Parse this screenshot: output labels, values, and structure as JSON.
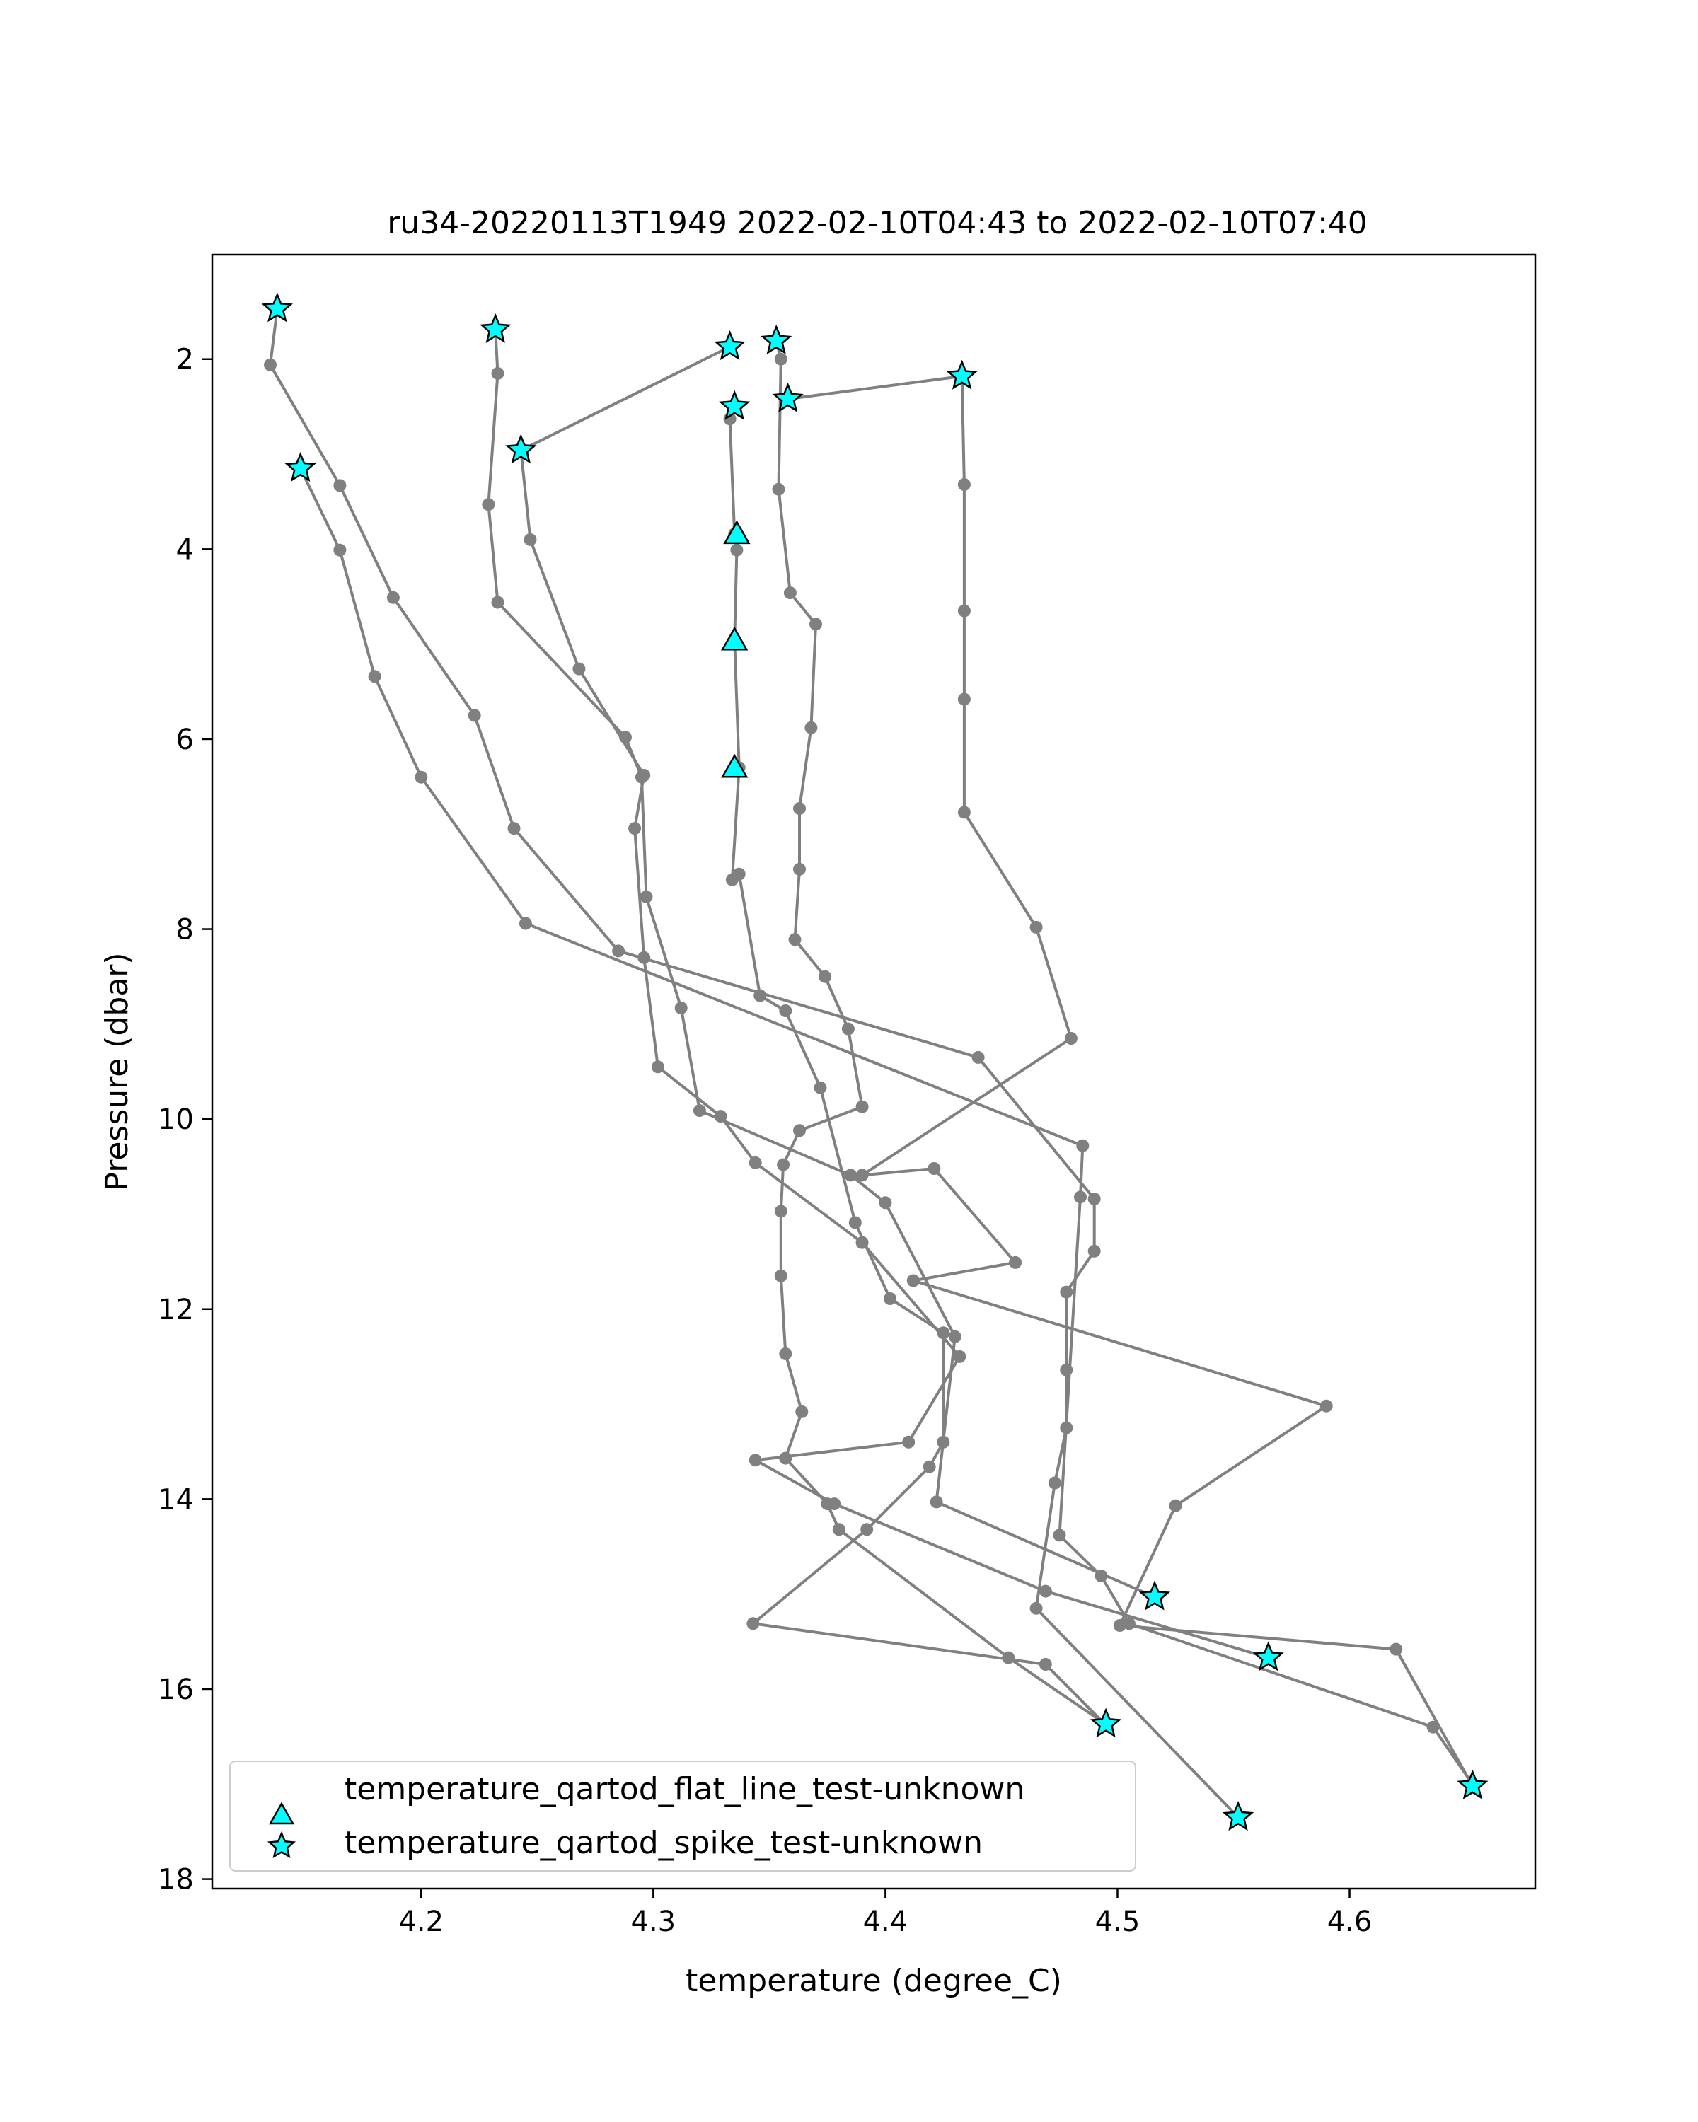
{
  "chart_data": {
    "type": "line",
    "title": "ru34-20220113T1949 2022-02-10T04:43 to 2022-02-10T07:40",
    "xlabel": "temperature (degree_C)",
    "ylabel": "Pressure (dbar)",
    "xlim": [
      4.11,
      4.68
    ],
    "ylim": [
      18.1,
      0.9
    ],
    "y_inverted": true,
    "xticks": [
      4.2,
      4.3,
      4.4,
      4.5,
      4.6
    ],
    "xtick_labels": [
      "4.2",
      "4.3",
      "4.4",
      "4.5",
      "4.6"
    ],
    "yticks": [
      2,
      4,
      6,
      8,
      10,
      12,
      14,
      16,
      18
    ],
    "ytick_labels": [
      "2",
      "4",
      "6",
      "8",
      "10",
      "12",
      "14",
      "16",
      "18"
    ],
    "grid": false,
    "legend_position": "lower-left",
    "colors": {
      "line": "#808080",
      "marker_fill": "#00ffff",
      "marker_edge": "#000000"
    },
    "series": [
      {
        "points": [
          [
            4.138,
            1.47
          ],
          [
            4.135,
            2.06
          ],
          [
            4.165,
            3.33
          ],
          [
            4.188,
            4.51
          ],
          [
            4.223,
            5.75
          ],
          [
            4.24,
            6.94
          ],
          [
            4.285,
            8.23
          ],
          [
            4.44,
            9.35
          ],
          [
            4.49,
            10.84
          ],
          [
            4.49,
            11.39
          ],
          [
            4.478,
            11.82
          ],
          [
            4.478,
            12.64
          ],
          [
            4.478,
            13.25
          ],
          [
            4.473,
            13.83
          ],
          [
            4.465,
            15.15
          ],
          [
            4.552,
            17.35
          ]
        ]
      },
      {
        "points": [
          [
            4.232,
            1.69
          ],
          [
            4.233,
            2.15
          ],
          [
            4.229,
            3.53
          ],
          [
            4.233,
            4.56
          ],
          [
            4.288,
            5.98
          ],
          [
            4.295,
            6.4
          ],
          [
            4.297,
            7.66
          ],
          [
            4.312,
            8.83
          ],
          [
            4.32,
            9.91
          ],
          [
            4.385,
            10.59
          ],
          [
            4.4,
            10.88
          ],
          [
            4.43,
            12.29
          ],
          [
            4.422,
            14.03
          ],
          [
            4.516,
            15.03
          ]
        ]
      },
      {
        "points": [
          [
            4.333,
            1.87
          ],
          [
            4.243,
            2.96
          ],
          [
            4.247,
            3.9
          ],
          [
            4.268,
            5.26
          ],
          [
            4.296,
            6.38
          ],
          [
            4.292,
            6.94
          ],
          [
            4.296,
            8.3
          ],
          [
            4.302,
            9.45
          ],
          [
            4.329,
            9.97
          ],
          [
            4.344,
            10.46
          ],
          [
            4.39,
            11.3
          ],
          [
            4.432,
            12.5
          ],
          [
            4.41,
            13.4
          ],
          [
            4.344,
            13.59
          ],
          [
            4.378,
            14.05
          ],
          [
            4.469,
            14.97
          ],
          [
            4.565,
            15.67
          ]
        ]
      },
      {
        "points": [
          [
            4.353,
            1.81
          ],
          [
            4.355,
            2.0
          ],
          [
            4.354,
            3.37
          ],
          [
            4.359,
            4.46
          ],
          [
            4.37,
            4.79
          ],
          [
            4.368,
            5.88
          ],
          [
            4.363,
            6.73
          ],
          [
            4.363,
            7.37
          ],
          [
            4.361,
            8.11
          ],
          [
            4.374,
            8.5
          ],
          [
            4.384,
            9.05
          ],
          [
            4.39,
            9.87
          ],
          [
            4.363,
            10.12
          ],
          [
            4.356,
            10.48
          ],
          [
            4.355,
            10.97
          ],
          [
            4.355,
            11.65
          ],
          [
            4.357,
            12.47
          ],
          [
            4.364,
            13.08
          ],
          [
            4.357,
            13.57
          ],
          [
            4.375,
            14.05
          ],
          [
            4.38,
            14.32
          ],
          [
            4.453,
            15.67
          ],
          [
            4.495,
            16.37
          ]
        ]
      },
      {
        "points": [
          [
            4.335,
            2.5
          ],
          [
            4.333,
            2.63
          ],
          [
            4.335,
            3.84
          ],
          [
            4.336,
            4.01
          ],
          [
            4.335,
            4.96
          ],
          [
            4.337,
            6.3
          ],
          [
            4.334,
            7.48
          ],
          [
            4.337,
            7.42
          ],
          [
            4.346,
            8.7
          ],
          [
            4.357,
            8.86
          ],
          [
            4.372,
            9.67
          ],
          [
            4.387,
            11.09
          ],
          [
            4.402,
            11.89
          ],
          [
            4.425,
            12.25
          ],
          [
            4.425,
            13.4
          ],
          [
            4.419,
            13.66
          ],
          [
            4.392,
            14.32
          ],
          [
            4.343,
            15.31
          ],
          [
            4.469,
            15.74
          ],
          [
            4.495,
            16.38
          ]
        ]
      },
      {
        "points": [
          [
            4.358,
            2.42
          ],
          [
            4.433,
            2.18
          ],
          [
            4.434,
            3.32
          ],
          [
            4.434,
            4.65
          ],
          [
            4.434,
            5.58
          ],
          [
            4.434,
            6.77
          ],
          [
            4.465,
            7.98
          ],
          [
            4.48,
            9.15
          ],
          [
            4.39,
            10.59
          ],
          [
            4.421,
            10.52
          ],
          [
            4.456,
            11.51
          ],
          [
            4.412,
            11.7
          ],
          [
            4.59,
            13.02
          ],
          [
            4.525,
            14.07
          ],
          [
            4.501,
            15.33
          ],
          [
            4.62,
            15.58
          ],
          [
            4.653,
            17.02
          ]
        ]
      },
      {
        "points": [
          [
            4.148,
            3.15
          ],
          [
            4.165,
            4.01
          ],
          [
            4.18,
            5.34
          ],
          [
            4.2,
            6.4
          ],
          [
            4.245,
            7.94
          ],
          [
            4.485,
            10.28
          ],
          [
            4.484,
            10.82
          ],
          [
            4.475,
            14.38
          ],
          [
            4.493,
            14.81
          ],
          [
            4.505,
            15.31
          ],
          [
            4.636,
            16.4
          ],
          [
            4.653,
            17.0
          ]
        ]
      }
    ],
    "markers": [
      {
        "legend": "temperature_qartod_flat_line_test-unknown",
        "shape": "triangle",
        "points": [
          [
            4.336,
            3.84
          ],
          [
            4.335,
            4.96
          ],
          [
            4.335,
            6.3
          ]
        ]
      },
      {
        "legend": "temperature_qartod_spike_test-unknown",
        "shape": "star",
        "points": [
          [
            4.138,
            1.47
          ],
          [
            4.232,
            1.69
          ],
          [
            4.333,
            1.87
          ],
          [
            4.353,
            1.81
          ],
          [
            4.335,
            2.5
          ],
          [
            4.358,
            2.42
          ],
          [
            4.433,
            2.18
          ],
          [
            4.148,
            3.15
          ],
          [
            4.243,
            2.96
          ],
          [
            4.516,
            15.03
          ],
          [
            4.565,
            15.67
          ],
          [
            4.495,
            16.37
          ],
          [
            4.552,
            17.35
          ],
          [
            4.653,
            17.02
          ]
        ]
      }
    ]
  }
}
